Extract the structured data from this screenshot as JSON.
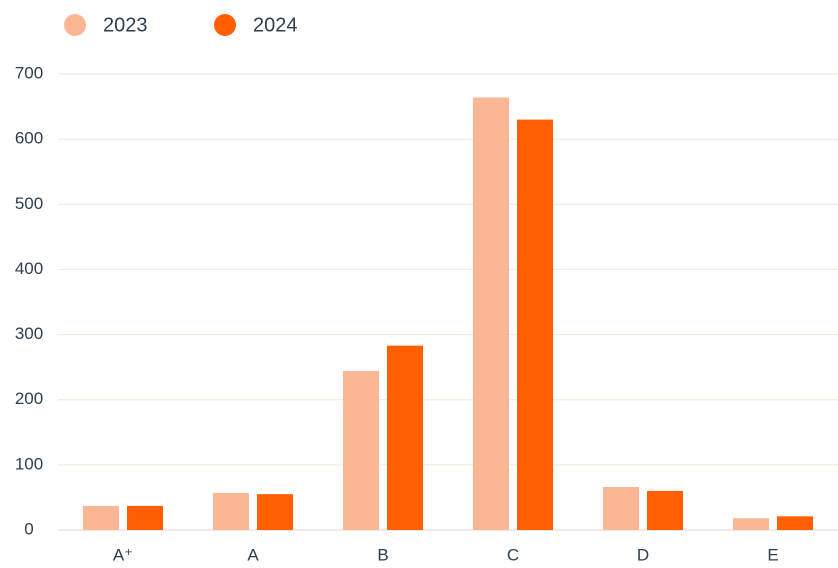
{
  "chart_data": {
    "type": "bar",
    "categories": [
      "A⁺",
      "A",
      "B",
      "C",
      "D",
      "E"
    ],
    "series": [
      {
        "name": "2023",
        "color": "#fbb794",
        "values": [
          37,
          57,
          244,
          664,
          66,
          18
        ]
      },
      {
        "name": "2024",
        "color": "#ff5f00",
        "values": [
          37,
          55,
          283,
          630,
          60,
          21
        ]
      }
    ],
    "ylim": [
      0,
      700
    ],
    "yticks": [
      0,
      100,
      200,
      300,
      400,
      500,
      600,
      700
    ],
    "grid": true,
    "legend": "top-left"
  }
}
